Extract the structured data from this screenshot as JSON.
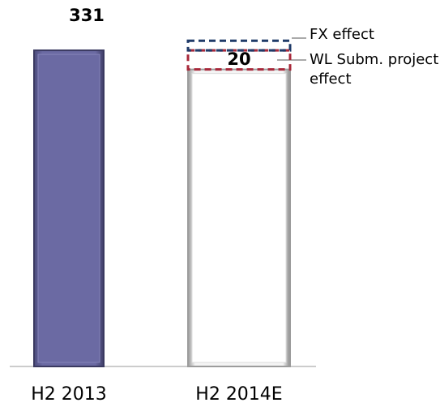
{
  "chart_data": {
    "type": "stacked-bar",
    "categories": [
      "H2 2013",
      "H2 2014E"
    ],
    "series": [
      {
        "colors": [
          "#6b6aa3",
          "#ffffff"
        ],
        "values": [
          331,
          311
        ],
        "value_labels": [
          "331",
          null
        ]
      },
      {
        "name": "WL Subm. project effect",
        "color": "#a8283a",
        "values": [
          null,
          20
        ],
        "value_labels": [
          null,
          "20"
        ]
      },
      {
        "name": "FX effect",
        "color": "#1f3a68",
        "values": [
          null,
          10
        ],
        "value_labels": [
          null,
          null
        ]
      }
    ]
  }
}
